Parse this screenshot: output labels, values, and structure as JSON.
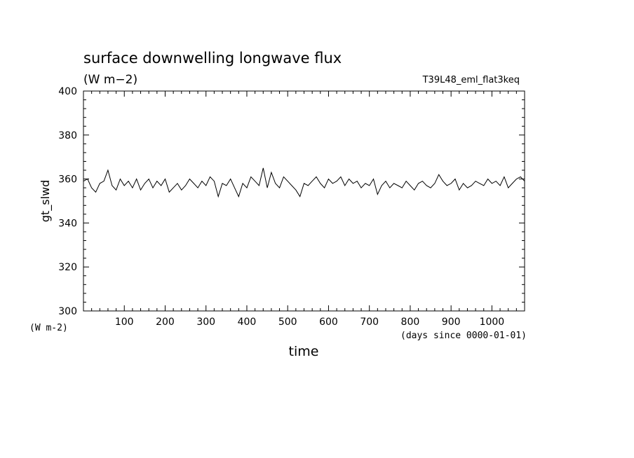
{
  "chart_data": {
    "type": "line",
    "title": "surface downwelling longwave flux",
    "subtitle": "(W m−2)",
    "experiment": "T39L48_eml_flat3keq",
    "xlabel": "time",
    "x_unit": "(days since 0000-01-01)",
    "ylabel": "gt_slwd",
    "y_unit": "(W m-2)",
    "xlim": [
      0,
      1080
    ],
    "ylim": [
      300,
      400
    ],
    "x_ticks": [
      "100",
      "200",
      "300",
      "400",
      "500",
      "600",
      "700",
      "800",
      "900",
      "1000"
    ],
    "y_ticks": [
      "300",
      "320",
      "340",
      "360",
      "380",
      "400"
    ],
    "grid": false,
    "series": [
      {
        "x": [
          0,
          10,
          20,
          30,
          40,
          50,
          60,
          70,
          80,
          90,
          100,
          110,
          120,
          130,
          140,
          150,
          160,
          170,
          180,
          190,
          200,
          210,
          220,
          230,
          240,
          250,
          260,
          270,
          280,
          290,
          300,
          310,
          320,
          330,
          340,
          350,
          360,
          370,
          380,
          390,
          400,
          410,
          420,
          430,
          440,
          450,
          460,
          470,
          480,
          490,
          500,
          510,
          520,
          530,
          540,
          550,
          560,
          570,
          580,
          590,
          600,
          610,
          620,
          630,
          640,
          650,
          660,
          670,
          680,
          690,
          700,
          710,
          720,
          730,
          740,
          750,
          760,
          770,
          780,
          790,
          800,
          810,
          820,
          830,
          840,
          850,
          860,
          870,
          880,
          890,
          900,
          910,
          920,
          930,
          940,
          950,
          960,
          970,
          980,
          990,
          1000,
          1010,
          1020,
          1030,
          1040,
          1050,
          1060,
          1070,
          1080
        ],
        "values": [
          359,
          360,
          356,
          354,
          358,
          359,
          364,
          357,
          355,
          360,
          357,
          359,
          356,
          360,
          355,
          358,
          360,
          356,
          359,
          357,
          360,
          354,
          356,
          358,
          355,
          357,
          360,
          358,
          356,
          359,
          357,
          361,
          359,
          352,
          358,
          357,
          360,
          356,
          352,
          358,
          356,
          361,
          359,
          357,
          365,
          356,
          363,
          358,
          356,
          361,
          359,
          357,
          355,
          352,
          358,
          357,
          359,
          361,
          358,
          356,
          360,
          358,
          359,
          361,
          357,
          360,
          358,
          359,
          356,
          358,
          357,
          360,
          353,
          357,
          359,
          356,
          358,
          357,
          356,
          359,
          357,
          355,
          358,
          359,
          357,
          356,
          358,
          362,
          359,
          357,
          358,
          360,
          355,
          358,
          356,
          357,
          359,
          358,
          357,
          360,
          358,
          359,
          357,
          361,
          356,
          358,
          360,
          361,
          359
        ]
      }
    ]
  }
}
